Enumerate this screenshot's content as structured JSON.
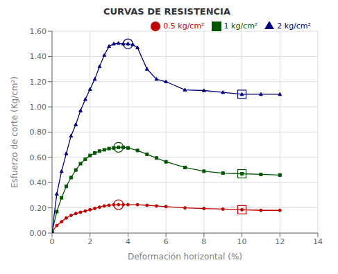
{
  "chart_data": {
    "type": "line",
    "title": "CURVAS DE RESISTENCIA",
    "x_label": "Deformación horizontal (%)",
    "y_label": "Esfuerzo de corte (Kg/cm²)",
    "xlim": [
      0,
      14
    ],
    "ylim": [
      0,
      1.6
    ],
    "xticks": [
      0,
      2,
      4,
      6,
      8,
      10,
      12,
      14
    ],
    "yticks": [
      {
        "value": 0,
        "label": "0.00"
      },
      {
        "value": 0.2,
        "label": "0.20"
      },
      {
        "value": 0.4,
        "label": "0.40"
      },
      {
        "value": 0.6,
        "label": "0.60"
      },
      {
        "value": 0.8,
        "label": "0.80"
      },
      {
        "value": 1,
        "label": "1.00"
      },
      {
        "value": 1.2,
        "label": "1.20"
      },
      {
        "value": 1.4,
        "label": "1.40"
      },
      {
        "value": 1.6,
        "label": "1.60"
      }
    ],
    "grid": true,
    "legend": "upper right",
    "series": [
      {
        "name": "0.5 kg/cm²",
        "color": "#c00000",
        "marker": "circle",
        "x": [
          0,
          0.25,
          0.5,
          0.75,
          1.0,
          1.25,
          1.5,
          1.75,
          2.0,
          2.25,
          2.5,
          2.75,
          3.0,
          3.25,
          3.5,
          3.75,
          4.0,
          4.5,
          5.0,
          5.5,
          6.0,
          7.0,
          8.0,
          9.0,
          10.0,
          11.0,
          12.0
        ],
        "values": [
          0.01,
          0.06,
          0.09,
          0.12,
          0.14,
          0.155,
          0.165,
          0.175,
          0.185,
          0.195,
          0.205,
          0.215,
          0.22,
          0.225,
          0.225,
          0.225,
          0.225,
          0.225,
          0.22,
          0.215,
          0.21,
          0.2,
          0.195,
          0.19,
          0.185,
          0.18,
          0.18
        ],
        "peak_x": 3.5,
        "peak_y": 0.225,
        "residual_x": 10.0,
        "residual_y": 0.185
      },
      {
        "name": "1 kg/cm²",
        "color": "#005500",
        "marker": "square",
        "x": [
          0,
          0.25,
          0.5,
          0.75,
          1.0,
          1.25,
          1.5,
          1.75,
          2.0,
          2.25,
          2.5,
          2.75,
          3.0,
          3.25,
          3.5,
          3.75,
          4.0,
          4.5,
          5.0,
          5.5,
          6.0,
          7.0,
          8.0,
          9.0,
          10.0,
          11.0,
          12.0
        ],
        "values": [
          0.01,
          0.17,
          0.28,
          0.37,
          0.44,
          0.5,
          0.55,
          0.585,
          0.615,
          0.635,
          0.65,
          0.66,
          0.67,
          0.675,
          0.68,
          0.68,
          0.675,
          0.655,
          0.625,
          0.595,
          0.565,
          0.52,
          0.49,
          0.475,
          0.47,
          0.465,
          0.46
        ],
        "peak_x": 3.5,
        "peak_y": 0.68,
        "residual_x": 10.0,
        "residual_y": 0.47
      },
      {
        "name": "2 kg/cm²",
        "color": "#000080",
        "marker": "triangle",
        "x": [
          0,
          0.25,
          0.5,
          0.75,
          1.0,
          1.25,
          1.5,
          1.75,
          2.0,
          2.25,
          2.5,
          2.75,
          3.0,
          3.25,
          3.5,
          3.75,
          4.0,
          4.25,
          4.5,
          5.0,
          5.5,
          6.0,
          7.0,
          8.0,
          9.0,
          10.0,
          11.0,
          12.0
        ],
        "values": [
          0.01,
          0.31,
          0.49,
          0.63,
          0.77,
          0.86,
          0.97,
          1.06,
          1.14,
          1.22,
          1.32,
          1.41,
          1.48,
          1.5,
          1.505,
          1.5,
          1.5,
          1.495,
          1.47,
          1.3,
          1.22,
          1.2,
          1.135,
          1.13,
          1.115,
          1.1,
          1.1,
          1.1
        ],
        "peak_x": 4.0,
        "peak_y": 1.5,
        "residual_x": 10.0,
        "residual_y": 1.1
      }
    ]
  }
}
